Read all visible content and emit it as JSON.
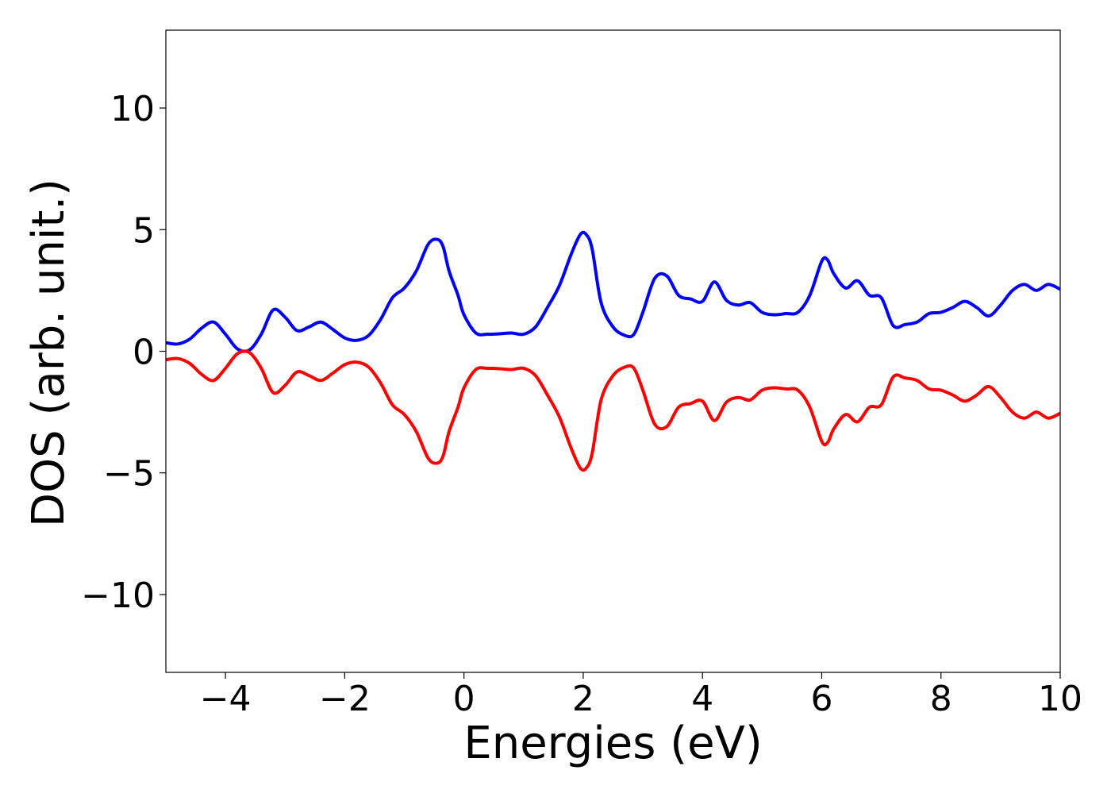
{
  "chart_data": {
    "type": "line",
    "title": "",
    "xlabel": "Energies (eV)",
    "ylabel": "DOS (arb. unit.)",
    "xlim": [
      -5,
      10
    ],
    "ylim": [
      -13.2,
      13.2
    ],
    "xticks": [
      -4,
      -2,
      0,
      2,
      4,
      6,
      8,
      10
    ],
    "xtick_labels": [
      "−4",
      "−2",
      "0",
      "2",
      "4",
      "6",
      "8",
      "10"
    ],
    "yticks": [
      10,
      5,
      0,
      -5,
      -10
    ],
    "ytick_labels": [
      "10",
      "5",
      "0",
      "−5",
      "−10"
    ],
    "grid": false,
    "legend": "none",
    "series": [
      {
        "color": "#0000ff",
        "x": [
          -5.0,
          -4.8,
          -4.6,
          -4.4,
          -4.2,
          -4.0,
          -3.8,
          -3.6,
          -3.4,
          -3.2,
          -3.0,
          -2.8,
          -2.6,
          -2.4,
          -2.2,
          -2.0,
          -1.8,
          -1.6,
          -1.4,
          -1.2,
          -1.0,
          -0.8,
          -0.6,
          -0.45,
          -0.35,
          -0.25,
          -0.1,
          0.0,
          0.2,
          0.4,
          0.6,
          0.8,
          1.0,
          1.2,
          1.4,
          1.6,
          1.8,
          1.95,
          2.05,
          2.15,
          2.3,
          2.5,
          2.7,
          2.85,
          3.0,
          3.2,
          3.4,
          3.6,
          3.8,
          4.0,
          4.2,
          4.4,
          4.6,
          4.8,
          5.0,
          5.2,
          5.4,
          5.6,
          5.8,
          6.0,
          6.1,
          6.2,
          6.4,
          6.6,
          6.8,
          7.0,
          7.2,
          7.4,
          7.6,
          7.8,
          8.0,
          8.2,
          8.4,
          8.6,
          8.8,
          9.0,
          9.2,
          9.4,
          9.6,
          9.8,
          10.0
        ],
        "values": [
          0.35,
          0.3,
          0.5,
          0.95,
          1.2,
          0.7,
          0.1,
          0.05,
          0.7,
          1.7,
          1.4,
          0.85,
          1.0,
          1.2,
          0.9,
          0.55,
          0.45,
          0.65,
          1.3,
          2.2,
          2.6,
          3.3,
          4.4,
          4.6,
          4.3,
          3.3,
          2.3,
          1.5,
          0.75,
          0.7,
          0.72,
          0.75,
          0.7,
          1.0,
          1.8,
          2.7,
          4.0,
          4.8,
          4.8,
          4.2,
          2.0,
          1.0,
          0.65,
          0.7,
          1.6,
          3.0,
          3.1,
          2.3,
          2.15,
          2.05,
          2.85,
          2.1,
          1.9,
          2.0,
          1.6,
          1.5,
          1.55,
          1.6,
          2.3,
          3.7,
          3.75,
          3.2,
          2.6,
          2.9,
          2.3,
          2.2,
          1.05,
          1.1,
          1.2,
          1.55,
          1.6,
          1.8,
          2.05,
          1.8,
          1.45,
          1.9,
          2.5,
          2.75,
          2.5,
          2.75,
          2.55
        ]
      },
      {
        "color": "#ff0000",
        "x": [
          -5.0,
          -4.8,
          -4.6,
          -4.4,
          -4.2,
          -4.0,
          -3.8,
          -3.6,
          -3.4,
          -3.2,
          -3.0,
          -2.8,
          -2.6,
          -2.4,
          -2.2,
          -2.0,
          -1.8,
          -1.6,
          -1.4,
          -1.2,
          -1.0,
          -0.8,
          -0.6,
          -0.45,
          -0.35,
          -0.25,
          -0.1,
          0.0,
          0.2,
          0.4,
          0.6,
          0.8,
          1.0,
          1.2,
          1.4,
          1.6,
          1.8,
          1.95,
          2.05,
          2.15,
          2.3,
          2.5,
          2.7,
          2.85,
          3.0,
          3.2,
          3.4,
          3.6,
          3.8,
          4.0,
          4.2,
          4.4,
          4.6,
          4.8,
          5.0,
          5.2,
          5.4,
          5.6,
          5.8,
          6.0,
          6.1,
          6.2,
          6.4,
          6.6,
          6.8,
          7.0,
          7.2,
          7.4,
          7.6,
          7.8,
          8.0,
          8.2,
          8.4,
          8.6,
          8.8,
          9.0,
          9.2,
          9.4,
          9.6,
          9.8,
          10.0
        ],
        "values": [
          -0.35,
          -0.3,
          -0.5,
          -0.95,
          -1.2,
          -0.7,
          -0.1,
          -0.05,
          -0.7,
          -1.7,
          -1.4,
          -0.85,
          -1.0,
          -1.2,
          -0.9,
          -0.55,
          -0.45,
          -0.65,
          -1.3,
          -2.2,
          -2.6,
          -3.3,
          -4.4,
          -4.6,
          -4.3,
          -3.3,
          -2.3,
          -1.5,
          -0.75,
          -0.7,
          -0.72,
          -0.75,
          -0.7,
          -1.0,
          -1.8,
          -2.7,
          -4.0,
          -4.8,
          -4.8,
          -4.2,
          -2.0,
          -1.0,
          -0.65,
          -0.7,
          -1.6,
          -3.0,
          -3.1,
          -2.3,
          -2.15,
          -2.05,
          -2.85,
          -2.1,
          -1.9,
          -2.0,
          -1.6,
          -1.5,
          -1.55,
          -1.6,
          -2.3,
          -3.7,
          -3.75,
          -3.2,
          -2.6,
          -2.9,
          -2.3,
          -2.2,
          -1.05,
          -1.1,
          -1.2,
          -1.55,
          -1.6,
          -1.8,
          -2.05,
          -1.8,
          -1.45,
          -1.9,
          -2.5,
          -2.75,
          -2.5,
          -2.75,
          -2.55
        ]
      }
    ]
  }
}
